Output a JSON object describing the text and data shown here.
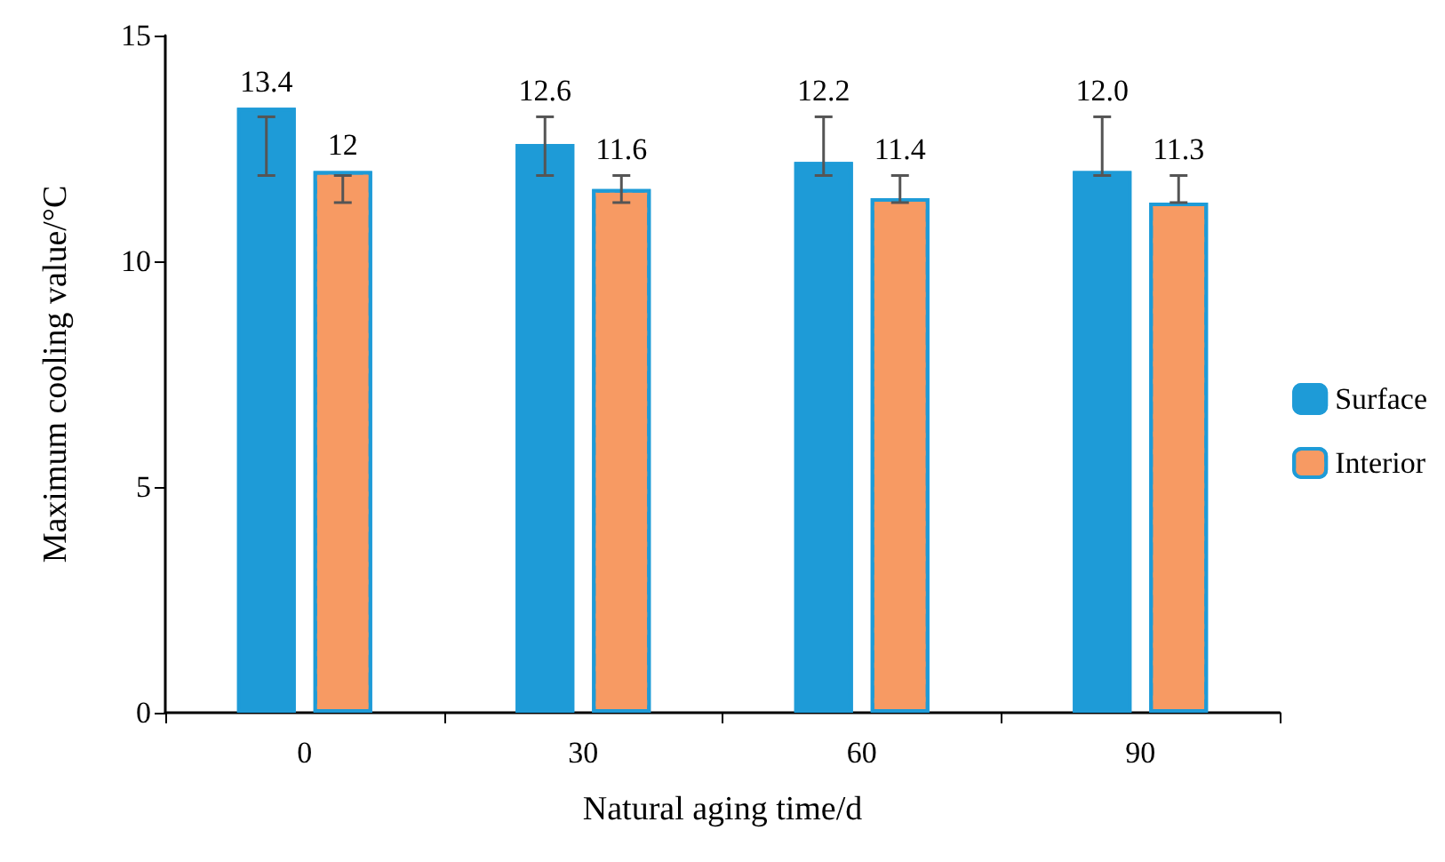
{
  "chart_data": {
    "type": "bar",
    "xlabel": "Natural aging time/d",
    "ylabel": "Maximum cooling value/°C",
    "categories": [
      "0",
      "30",
      "60",
      "90"
    ],
    "series": [
      {
        "name": "Surface",
        "color": "#1e9bd7",
        "values": [
          13.4,
          12.6,
          12.2,
          12.0
        ],
        "value_labels": [
          "13.4",
          "12.6",
          "12.2",
          "12.0"
        ],
        "errors": [
          [
            11.9,
            13.2
          ],
          [
            11.9,
            13.2
          ],
          [
            11.9,
            13.2
          ],
          [
            11.9,
            13.2
          ]
        ]
      },
      {
        "name": "Interior",
        "color": "#f79a63",
        "values": [
          12,
          11.6,
          11.4,
          11.3
        ],
        "value_labels": [
          "12",
          "11.6",
          "11.4",
          "11.3"
        ],
        "errors": [
          [
            11.3,
            11.9
          ],
          [
            11.3,
            11.9
          ],
          [
            11.3,
            11.9
          ],
          [
            11.3,
            11.9
          ]
        ]
      }
    ],
    "ylim": [
      0,
      15
    ],
    "yticks": [
      0,
      5,
      10,
      15
    ],
    "grid": false,
    "legend": "right"
  }
}
